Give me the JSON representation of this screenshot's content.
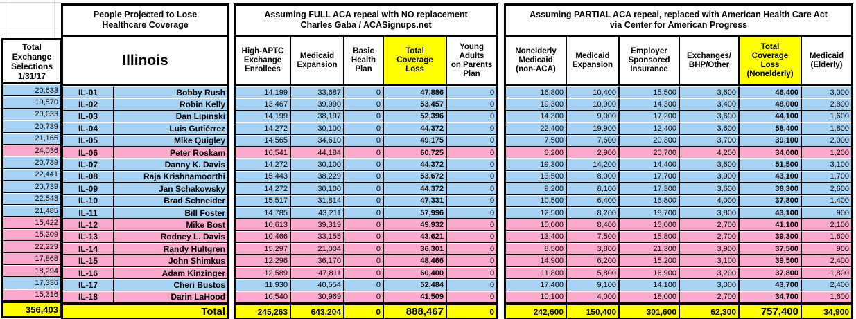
{
  "sheet": {
    "left_table": {
      "header": "Total\nExchange\nSelections\n1/31/17",
      "total": "356,403"
    },
    "district_table": {
      "title": "People Projected to Lose\nHealthcare Coverage",
      "state": "Illinois",
      "total_label": "Total"
    },
    "full_repeal_table": {
      "title": "Assuming FULL ACA repeal with NO replacement\nCharles Gaba / ACASignups.net",
      "columns": [
        "High-APTC\nExchange\nEnrollees",
        "Medicaid\nExpansion",
        "Basic\nHealth\nPlan",
        "Total\nCoverage\nLoss",
        "Young\nAdults\non Parents\nPlan"
      ],
      "totals": [
        "245,263",
        "643,204",
        "0",
        "888,467",
        "0"
      ]
    },
    "partial_repeal_table": {
      "title": "Assuming PARTIAL ACA repeal, replaced with American Health Care Act\nvia Center for American Progress",
      "columns": [
        "Nonelderly\nMedicaid\n(non-ACA)",
        "Medicaid\nExpansion",
        "Employer\nSponsored\nInsurance",
        "Exchanges/\nBHP/Other",
        "Total\nCoverage\nLoss\n(Nonelderly)",
        "Medicaid\n(Elderly)"
      ],
      "totals": [
        "242,600",
        "150,400",
        "301,600",
        "62,300",
        "757,400",
        "34,900"
      ]
    },
    "rows": [
      {
        "exchange_selections": "20,633",
        "district": "IL-01",
        "name": "Bobby Rush",
        "party": "D",
        "full": [
          "14,199",
          "33,687",
          "0",
          "47,886",
          "0"
        ],
        "partial": [
          "16,800",
          "10,400",
          "15,500",
          "3,600",
          "46,400",
          "3,000"
        ]
      },
      {
        "exchange_selections": "19,570",
        "district": "IL-02",
        "name": "Robin Kelly",
        "party": "D",
        "full": [
          "13,467",
          "39,990",
          "0",
          "53,457",
          "0"
        ],
        "partial": [
          "19,300",
          "10,900",
          "14,300",
          "3,400",
          "48,000",
          "2,800"
        ]
      },
      {
        "exchange_selections": "20,633",
        "district": "IL-03",
        "name": "Dan Lipinski",
        "party": "D",
        "full": [
          "14,199",
          "38,197",
          "0",
          "52,396",
          "0"
        ],
        "partial": [
          "14,300",
          "9,000",
          "17,200",
          "3,600",
          "44,100",
          "1,600"
        ]
      },
      {
        "exchange_selections": "20,739",
        "district": "IL-04",
        "name": "Luis Gutiérrez",
        "party": "D",
        "full": [
          "14,272",
          "30,100",
          "0",
          "44,372",
          "0"
        ],
        "partial": [
          "22,400",
          "19,900",
          "12,400",
          "3,600",
          "58,400",
          "1,800"
        ]
      },
      {
        "exchange_selections": "21,165",
        "district": "IL-05",
        "name": "Mike Quigley",
        "party": "D",
        "full": [
          "14,565",
          "34,610",
          "0",
          "49,175",
          "0"
        ],
        "partial": [
          "7,500",
          "7,600",
          "20,300",
          "3,700",
          "39,100",
          "2,000"
        ]
      },
      {
        "exchange_selections": "24,036",
        "district": "IL-06",
        "name": "Peter Roskam",
        "party": "R",
        "full": [
          "16,541",
          "44,184",
          "0",
          "60,725",
          "0"
        ],
        "partial": [
          "6,200",
          "2,900",
          "20,700",
          "4,200",
          "34,000",
          "1,200"
        ]
      },
      {
        "exchange_selections": "20,739",
        "district": "IL-07",
        "name": "Danny K. Davis",
        "party": "D",
        "full": [
          "14,272",
          "30,100",
          "0",
          "44,372",
          "0"
        ],
        "partial": [
          "19,300",
          "14,200",
          "14,400",
          "3,600",
          "51,500",
          "3,100"
        ]
      },
      {
        "exchange_selections": "22,441",
        "district": "IL-08",
        "name": "Raja Krishnamoorthi",
        "party": "D",
        "full": [
          "15,443",
          "38,229",
          "0",
          "53,672",
          "0"
        ],
        "partial": [
          "13,500",
          "8,000",
          "17,700",
          "3,900",
          "43,100",
          "1,700"
        ]
      },
      {
        "exchange_selections": "20,739",
        "district": "IL-09",
        "name": "Jan Schakowsky",
        "party": "D",
        "full": [
          "14,272",
          "30,100",
          "0",
          "44,372",
          "0"
        ],
        "partial": [
          "9,200",
          "8,100",
          "17,300",
          "3,600",
          "38,300",
          "2,600"
        ]
      },
      {
        "exchange_selections": "22,548",
        "district": "IL-10",
        "name": "Brad Schneider",
        "party": "D",
        "full": [
          "15,517",
          "31,814",
          "0",
          "47,331",
          "0"
        ],
        "partial": [
          "10,500",
          "6,400",
          "16,800",
          "4,000",
          "37,800",
          "1,400"
        ]
      },
      {
        "exchange_selections": "21,485",
        "district": "IL-11",
        "name": "Bill Foster",
        "party": "D",
        "full": [
          "14,785",
          "43,211",
          "0",
          "57,996",
          "0"
        ],
        "partial": [
          "12,500",
          "8,200",
          "18,700",
          "3,800",
          "43,100",
          "900"
        ]
      },
      {
        "exchange_selections": "15,422",
        "district": "IL-12",
        "name": "Mike Bost",
        "party": "R",
        "full": [
          "10,613",
          "39,319",
          "0",
          "49,932",
          "0"
        ],
        "partial": [
          "15,000",
          "8,400",
          "15,000",
          "2,700",
          "41,100",
          "2,100"
        ]
      },
      {
        "exchange_selections": "15,209",
        "district": "IL-13",
        "name": "Rodney L. Davis",
        "party": "R",
        "full": [
          "10,466",
          "33,155",
          "0",
          "43,621",
          "0"
        ],
        "partial": [
          "13,400",
          "7,500",
          "15,800",
          "2,700",
          "39,300",
          "1,600"
        ]
      },
      {
        "exchange_selections": "22,229",
        "district": "IL-14",
        "name": "Randy Hultgren",
        "party": "R",
        "full": [
          "15,297",
          "21,004",
          "0",
          "36,301",
          "0"
        ],
        "partial": [
          "8,500",
          "3,800",
          "21,300",
          "3,900",
          "37,500",
          "900"
        ]
      },
      {
        "exchange_selections": "17,868",
        "district": "IL-15",
        "name": "John Shimkus",
        "party": "R",
        "full": [
          "12,296",
          "36,170",
          "0",
          "48,466",
          "0"
        ],
        "partial": [
          "14,900",
          "6,200",
          "15,200",
          "3,100",
          "39,500",
          "2,400"
        ]
      },
      {
        "exchange_selections": "18,294",
        "district": "IL-16",
        "name": "Adam Kinzinger",
        "party": "R",
        "full": [
          "12,589",
          "47,811",
          "0",
          "60,400",
          "0"
        ],
        "partial": [
          "11,800",
          "5,800",
          "16,900",
          "3,200",
          "37,800",
          "1,800"
        ]
      },
      {
        "exchange_selections": "17,336",
        "district": "IL-17",
        "name": "Cheri Bustos",
        "party": "D",
        "full": [
          "11,930",
          "40,554",
          "0",
          "52,484",
          "0"
        ],
        "partial": [
          "17,400",
          "9,100",
          "14,100",
          "3,000",
          "43,700",
          "2,400"
        ]
      },
      {
        "exchange_selections": "15,316",
        "district": "IL-18",
        "name": "Darin LaHood",
        "party": "R",
        "full": [
          "10,540",
          "30,969",
          "0",
          "41,509",
          "0"
        ],
        "partial": [
          "10,100",
          "4,000",
          "18,000",
          "2,700",
          "34,700",
          "1,600"
        ]
      }
    ],
    "colors": {
      "dem_row": "#a8d2f4",
      "rep_row": "#fbaacd",
      "highlight": "#ffff00",
      "border": "#000000",
      "gridline": "#dcdcdc"
    }
  }
}
